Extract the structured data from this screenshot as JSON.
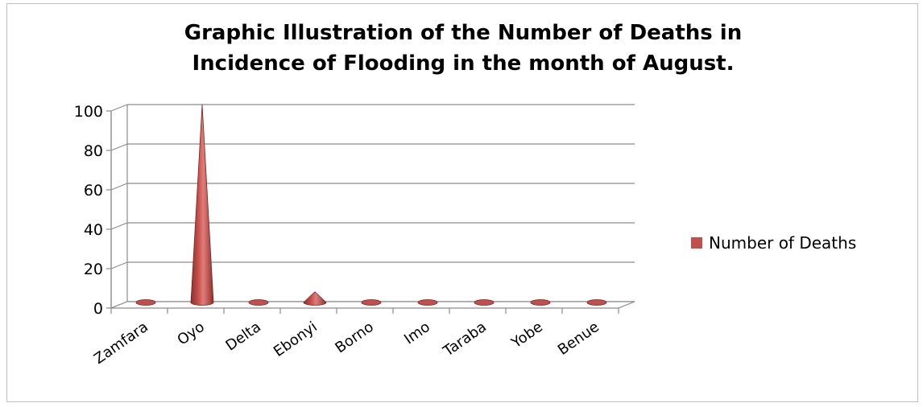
{
  "chart_data": {
    "type": "bar",
    "shape": "cone-3d",
    "title_lines": [
      "Graphic Illustration of the Number of Deaths in",
      "Incidence of Flooding in the month of August."
    ],
    "categories": [
      "Zamfara",
      "Oyo",
      "Delta",
      "Ebonyi",
      "Borno",
      "Imo",
      "Taraba",
      "Yobe",
      "Benue"
    ],
    "series": [
      {
        "name": "Number of Deaths",
        "values": [
          0,
          100,
          0,
          5,
          0,
          0,
          0,
          0,
          0
        ],
        "color": "#c0504d"
      }
    ],
    "yticks": [
      "0",
      "20",
      "40",
      "60",
      "80",
      "100"
    ],
    "ylim": [
      0,
      100
    ],
    "grid": true,
    "legend_position": "right"
  }
}
